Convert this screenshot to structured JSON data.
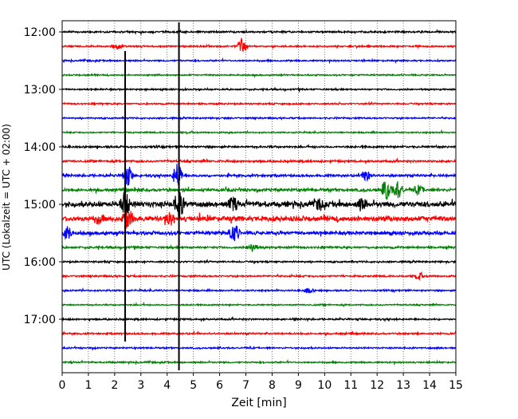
{
  "chart_data": {
    "type": "line",
    "title": "",
    "xlabel": "Zeit  [min]",
    "ylabel": "UTC (Lokalzeit = UTC + 02:00)",
    "xlim": [
      0,
      15
    ],
    "x_ticks": [
      0,
      1,
      2,
      3,
      4,
      5,
      6,
      7,
      8,
      9,
      10,
      11,
      12,
      13,
      14,
      15
    ],
    "y_ticks": [
      "12:00",
      "13:00",
      "14:00",
      "15:00",
      "16:00",
      "17:00"
    ],
    "grid": "vertical dotted lines at each minute",
    "color_cycle": [
      "#000000",
      "#ff0000",
      "#0000ff",
      "#008000"
    ],
    "trace_start_minutes": 0,
    "trace_interval_minutes": 15,
    "trace_count": 24,
    "trace_noise_amplitude": [
      0.1,
      0.09,
      0.09,
      0.08,
      0.09,
      0.09,
      0.09,
      0.08,
      0.12,
      0.12,
      0.14,
      0.17,
      0.32,
      0.3,
      0.2,
      0.12,
      0.1,
      0.1,
      0.09,
      0.08,
      0.1,
      0.1,
      0.09,
      0.09
    ],
    "events": [
      {
        "x": 2.4,
        "trace_from": 2,
        "trace_to": 21,
        "color": "#000000"
      },
      {
        "x": 4.45,
        "trace_from": 0,
        "trace_to": 23,
        "color": "#000000"
      }
    ],
    "local_bursts": [
      {
        "trace": 1,
        "x": 6.85,
        "amplitude": 1.2
      },
      {
        "trace": 1,
        "x": 2.1,
        "amplitude": 0.4
      },
      {
        "trace": 10,
        "x": 4.4,
        "amplitude": 1.8
      },
      {
        "trace": 10,
        "x": 2.5,
        "amplitude": 1.5
      },
      {
        "trace": 10,
        "x": 11.6,
        "amplitude": 0.8
      },
      {
        "trace": 11,
        "x": 12.35,
        "amplitude": 1.6
      },
      {
        "trace": 11,
        "x": 12.8,
        "amplitude": 1.2
      },
      {
        "trace": 11,
        "x": 13.6,
        "amplitude": 0.6
      },
      {
        "trace": 12,
        "x": 2.4,
        "amplitude": 1.8
      },
      {
        "trace": 12,
        "x": 4.45,
        "amplitude": 2.0
      },
      {
        "trace": 12,
        "x": 6.5,
        "amplitude": 0.9
      },
      {
        "trace": 12,
        "x": 9.8,
        "amplitude": 0.7
      },
      {
        "trace": 12,
        "x": 11.4,
        "amplitude": 0.7
      },
      {
        "trace": 13,
        "x": 2.5,
        "amplitude": 1.6
      },
      {
        "trace": 13,
        "x": 4.1,
        "amplitude": 0.8
      },
      {
        "trace": 13,
        "x": 1.4,
        "amplitude": 0.6
      },
      {
        "trace": 14,
        "x": 0.2,
        "amplitude": 0.9
      },
      {
        "trace": 14,
        "x": 6.55,
        "amplitude": 1.4
      },
      {
        "trace": 15,
        "x": 7.25,
        "amplitude": 0.6
      },
      {
        "trace": 17,
        "x": 13.6,
        "amplitude": 0.4
      },
      {
        "trace": 18,
        "x": 9.4,
        "amplitude": 0.4
      }
    ]
  }
}
